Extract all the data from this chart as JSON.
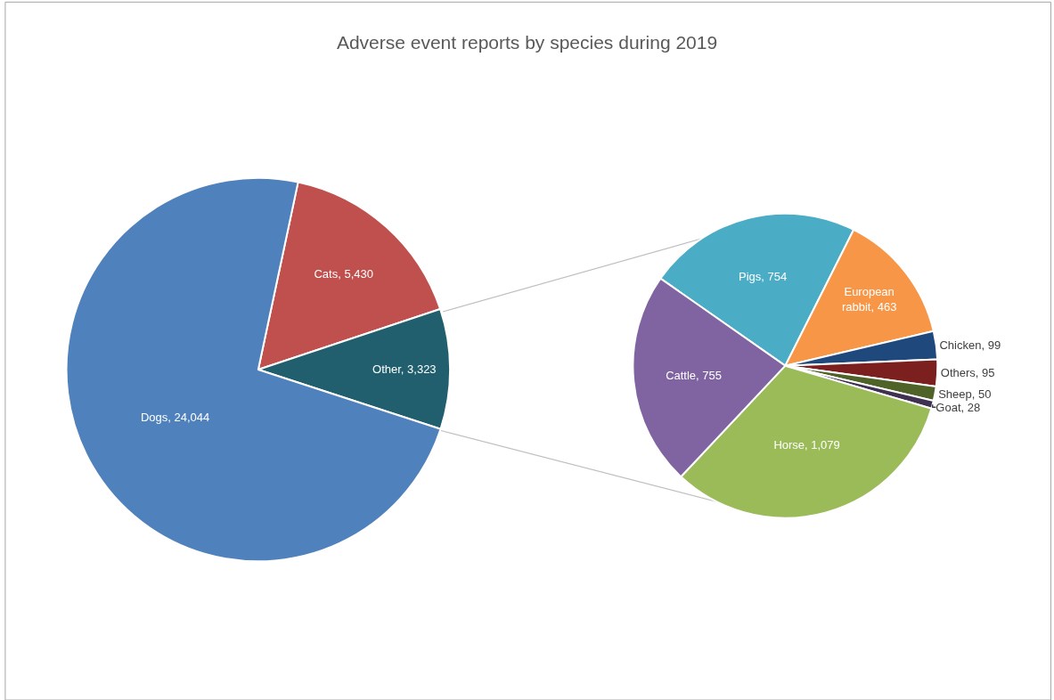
{
  "chart_data": [
    {
      "type": "pie",
      "title": "Adverse event reports by species during 2019",
      "legend": false,
      "categories": [
        "Cats",
        "Other",
        "Dogs"
      ],
      "values": [
        5430,
        3323,
        24044
      ],
      "colors": [
        "#c0504d",
        "#215f6e",
        "#4f81bd"
      ],
      "value_labels": [
        "5,430",
        "3,323",
        "24,044"
      ]
    },
    {
      "type": "pie",
      "legend": false,
      "categories": [
        "Pigs",
        "European rabbit",
        "Chicken",
        "Others",
        "Sheep",
        "Goat",
        "Horse",
        "Cattle"
      ],
      "values": [
        754,
        463,
        99,
        95,
        50,
        28,
        1079,
        755
      ],
      "colors": [
        "#4bacc6",
        "#f79646",
        "#1f497d",
        "#7b1f1f",
        "#4f6228",
        "#403152",
        "#9bbb59",
        "#8064a2"
      ],
      "value_labels": [
        "754",
        "463",
        "99",
        "95",
        "50",
        "28",
        "1,079",
        "755"
      ]
    }
  ]
}
